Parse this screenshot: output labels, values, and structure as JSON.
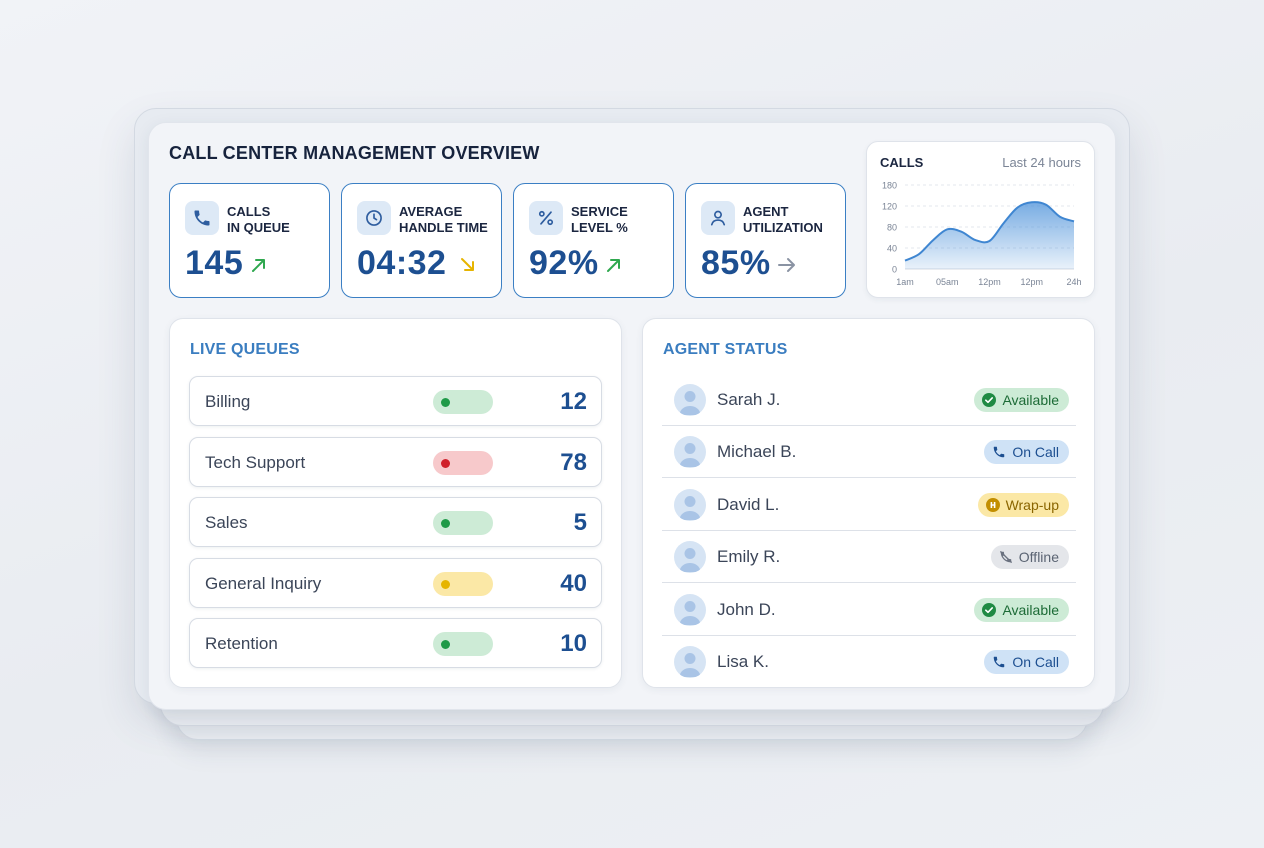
{
  "title": "CALL CENTER MANAGEMENT OVERVIEW",
  "kpis": [
    {
      "label": "CALLS\nIN QUEUE",
      "value": "145",
      "icon": "phone-icon",
      "trend": "up",
      "trend_icon": "arrow-up-right-icon",
      "trend_color": "#2fa84f"
    },
    {
      "label": "AVERAGE\nHANDLE TIME",
      "value": "04:32",
      "icon": "clock-icon",
      "trend": "down",
      "trend_icon": "arrow-down-right-icon",
      "trend_color": "#e6b400"
    },
    {
      "label": "SERVICE\nLEVEL %",
      "value": "92%",
      "icon": "percent-icon",
      "trend": "up",
      "trend_icon": "arrow-up-right-icon",
      "trend_color": "#2fa84f"
    },
    {
      "label": "AGENT\nUTILIZATION",
      "value": "85%",
      "icon": "user-icon",
      "trend": "flat",
      "trend_icon": "arrow-right-icon",
      "trend_color": "#8a93a3"
    }
  ],
  "calls_chart": {
    "title": "CALLS",
    "subtitle": "Last 24 hours"
  },
  "chart_data": {
    "type": "area",
    "title": "CALLS",
    "subtitle": "Last 24 hours",
    "x_ticks": [
      "1am",
      "05am",
      "12pm",
      "12pm",
      "24h"
    ],
    "y_ticks": [
      "180",
      "120",
      "80",
      "40",
      "0"
    ],
    "ylim": [
      0,
      180
    ],
    "grid": true,
    "x": [
      0,
      1,
      2,
      3,
      4,
      5,
      6,
      7,
      8,
      9,
      10,
      11,
      12
    ],
    "values": [
      18,
      32,
      62,
      85,
      80,
      62,
      60,
      98,
      132,
      143,
      138,
      112,
      102
    ],
    "color": "#4a90d9"
  },
  "live_queues": {
    "heading": "LIVE QUEUES",
    "rows": [
      {
        "name": "Billing",
        "count": "12",
        "status": "green"
      },
      {
        "name": "Tech Support",
        "count": "78",
        "status": "red"
      },
      {
        "name": "Sales",
        "count": "5",
        "status": "green"
      },
      {
        "name": "General Inquiry",
        "count": "40",
        "status": "yellow"
      },
      {
        "name": "Retention",
        "count": "10",
        "status": "green"
      }
    ]
  },
  "agent_status": {
    "heading": "AGENT STATUS",
    "rows": [
      {
        "name": "Sarah J.",
        "status": "Available",
        "kind": "available"
      },
      {
        "name": "Michael B.",
        "status": "On Call",
        "kind": "oncall"
      },
      {
        "name": "David L.",
        "status": "Wrap-up",
        "kind": "wrapup"
      },
      {
        "name": "Emily R.",
        "status": "Offline",
        "kind": "offline"
      },
      {
        "name": "John D.",
        "status": "Available",
        "kind": "available"
      },
      {
        "name": "Lisa K.",
        "status": "On Call",
        "kind": "oncall"
      }
    ]
  },
  "colors": {
    "accent": "#1d4f91",
    "heading_blue": "#3a7dc0",
    "kpi_border": "#3b7fc4",
    "green_pill": "#cdebd6",
    "green_dot": "#1f9a48",
    "red_pill": "#f7c9cb",
    "red_dot": "#d0202a",
    "yellow_pill": "#fbe8a6",
    "yellow_dot": "#e6b400"
  }
}
